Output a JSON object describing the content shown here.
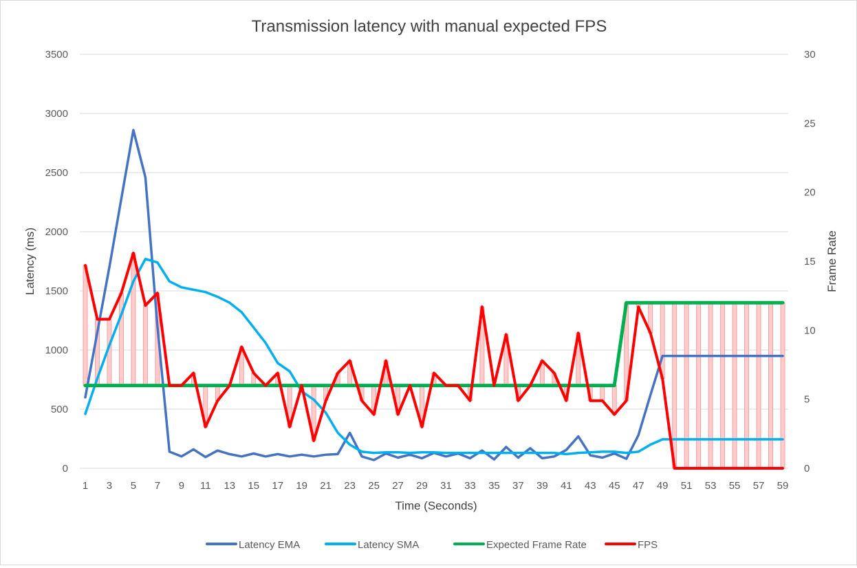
{
  "chart_data": {
    "type": "line",
    "title": "Transmission latency with manual expected FPS",
    "xlabel": "Time (Seconds)",
    "ylabel": "Latency (ms)",
    "y2label": "Frame Rate",
    "x": [
      1,
      2,
      3,
      4,
      5,
      6,
      7,
      8,
      9,
      10,
      11,
      12,
      13,
      14,
      15,
      16,
      17,
      18,
      19,
      20,
      21,
      22,
      23,
      24,
      25,
      26,
      27,
      28,
      29,
      30,
      31,
      32,
      33,
      34,
      35,
      36,
      37,
      38,
      39,
      40,
      41,
      42,
      43,
      44,
      45,
      46,
      47,
      48,
      49,
      50,
      51,
      52,
      53,
      54,
      55,
      56,
      57,
      58,
      59
    ],
    "x_ticks": [
      1,
      3,
      5,
      7,
      9,
      11,
      13,
      15,
      17,
      19,
      21,
      23,
      25,
      27,
      29,
      31,
      33,
      35,
      37,
      39,
      41,
      43,
      45,
      47,
      49,
      51,
      53,
      55,
      57,
      59
    ],
    "ylim": [
      0,
      3500
    ],
    "y_ticks": [
      0,
      500,
      1000,
      1500,
      2000,
      2500,
      3000,
      3500
    ],
    "y2lim": [
      0,
      30
    ],
    "y2_ticks": [
      0,
      5,
      10,
      15,
      20,
      25,
      30
    ],
    "grid": true,
    "legend_position": "bottom",
    "series": [
      {
        "name": "Latency EMA",
        "axis": "left",
        "color": "#4472C4",
        "values": [
          600,
          1150,
          1700,
          2280,
          2860,
          2460,
          1200,
          140,
          100,
          160,
          95,
          150,
          120,
          100,
          125,
          100,
          120,
          100,
          115,
          100,
          115,
          120,
          300,
          100,
          70,
          125,
          90,
          115,
          85,
          130,
          100,
          125,
          85,
          150,
          75,
          180,
          90,
          170,
          85,
          100,
          155,
          270,
          110,
          90,
          125,
          80,
          280,
          620,
          950,
          950,
          950,
          950,
          950,
          950,
          950,
          950,
          950,
          950,
          950
        ]
      },
      {
        "name": "Latency SMA",
        "axis": "left",
        "color": "#00B0F0",
        "values": [
          460,
          760,
          1040,
          1300,
          1580,
          1770,
          1740,
          1580,
          1530,
          1510,
          1490,
          1450,
          1400,
          1320,
          1190,
          1060,
          890,
          820,
          650,
          580,
          470,
          300,
          200,
          140,
          130,
          135,
          135,
          130,
          135,
          135,
          130,
          130,
          130,
          130,
          130,
          130,
          130,
          130,
          130,
          130,
          120,
          130,
          135,
          140,
          140,
          130,
          140,
          200,
          245,
          245,
          245,
          245,
          245,
          245,
          245,
          245,
          245,
          245,
          245
        ]
      },
      {
        "name": "Expected Frame Rate",
        "axis": "right",
        "color": "#00B050",
        "values": [
          6,
          6,
          6,
          6,
          6,
          6,
          6,
          6,
          6,
          6,
          6,
          6,
          6,
          6,
          6,
          6,
          6,
          6,
          6,
          6,
          6,
          6,
          6,
          6,
          6,
          6,
          6,
          6,
          6,
          6,
          6,
          6,
          6,
          6,
          6,
          6,
          6,
          6,
          6,
          6,
          6,
          6,
          6,
          6,
          6,
          12,
          12,
          12,
          12,
          12,
          12,
          12,
          12,
          12,
          12,
          12,
          12,
          12,
          12
        ]
      },
      {
        "name": "FPS",
        "axis": "right",
        "color": "#FF0000",
        "values": [
          14.7,
          10.8,
          10.8,
          12.7,
          15.6,
          11.8,
          12.7,
          6,
          6,
          6.9,
          3,
          4.9,
          6,
          8.8,
          6.9,
          6,
          6.9,
          3,
          6,
          2,
          4.9,
          6.9,
          7.8,
          4.9,
          3.9,
          7.8,
          3.9,
          6,
          3,
          6.9,
          6,
          6,
          4.9,
          11.7,
          6,
          9.7,
          4.9,
          6,
          7.8,
          6.9,
          4.9,
          9.8,
          4.9,
          4.9,
          3.9,
          4.9,
          11.7,
          9.8,
          6.5,
          0,
          0,
          0,
          0,
          0,
          0,
          0,
          0,
          0,
          0
        ]
      }
    ]
  }
}
